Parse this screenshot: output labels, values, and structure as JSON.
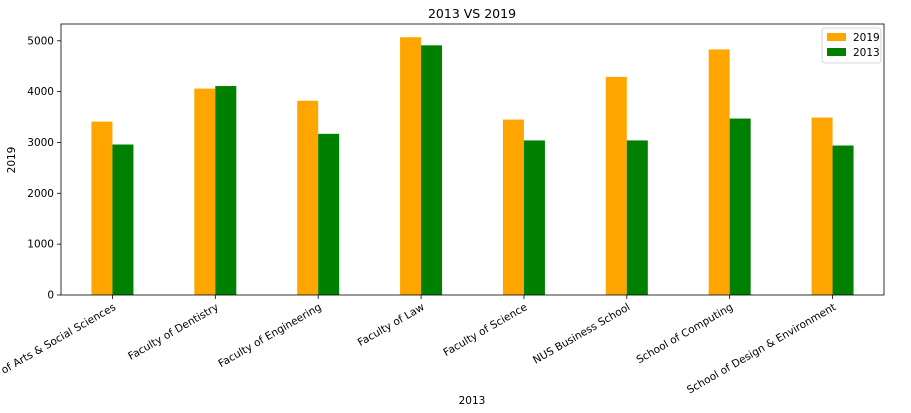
{
  "chart_data": {
    "type": "bar",
    "title": "2013 VS 2019",
    "xlabel": "2013",
    "ylabel": "2019",
    "categories": [
      "Faculty of Arts & Social Sciences",
      "Faculty of Dentistry",
      "Faculty of Engineering",
      "Faculty of Law",
      "Faculty of Science",
      "NUS Business School",
      "School of Computing",
      "School of Design & Environment"
    ],
    "series": [
      {
        "name": "2019",
        "color": "#ffa500",
        "values": [
          3410,
          4060,
          3820,
          5070,
          3450,
          4290,
          4830,
          3490
        ]
      },
      {
        "name": "2013",
        "color": "#008000",
        "values": [
          2960,
          4110,
          3170,
          4910,
          3040,
          3040,
          3470,
          2940
        ]
      }
    ],
    "ylim": [
      0,
      5330
    ],
    "yticks": [
      0,
      1000,
      2000,
      3000,
      4000,
      5000
    ],
    "grid": false,
    "legend_position": "top-right"
  }
}
